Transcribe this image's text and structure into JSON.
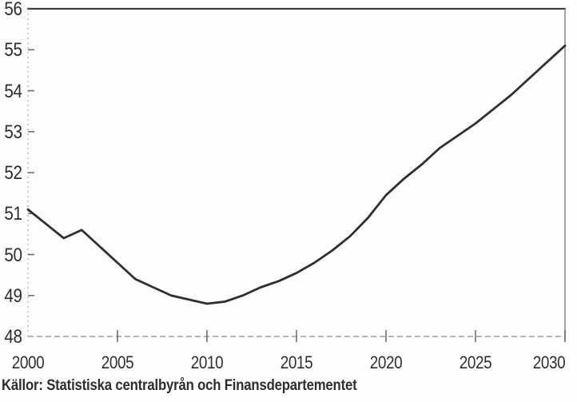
{
  "chart_data": {
    "type": "line",
    "x": [
      2000,
      2001,
      2002,
      2003,
      2004,
      2005,
      2006,
      2007,
      2008,
      2009,
      2010,
      2011,
      2012,
      2013,
      2014,
      2015,
      2016,
      2017,
      2018,
      2019,
      2020,
      2021,
      2022,
      2023,
      2024,
      2025,
      2026,
      2027,
      2028,
      2029,
      2030
    ],
    "values": [
      51.1,
      50.75,
      50.4,
      50.6,
      50.2,
      49.8,
      49.4,
      49.2,
      49.0,
      48.9,
      48.8,
      48.85,
      49.0,
      49.2,
      49.35,
      49.55,
      49.8,
      50.1,
      50.45,
      50.9,
      51.45,
      51.85,
      52.2,
      52.6,
      52.9,
      53.2,
      53.55,
      53.9,
      54.3,
      54.7,
      55.1
    ],
    "title": "",
    "xlabel": "",
    "ylabel": "",
    "xlim": [
      2000,
      2030
    ],
    "ylim": [
      48,
      56
    ],
    "x_ticks": [
      2000,
      2005,
      2010,
      2015,
      2020,
      2025,
      2030
    ],
    "y_ticks": [
      56,
      55,
      54,
      53,
      52,
      51,
      50,
      49,
      48
    ],
    "grid": false,
    "legend": false
  },
  "source_note": "Källor: Statistiska centralbyrån och Finansdepartementet",
  "colors": {
    "line": "#2f2f2f",
    "frame_top": "#3f3f3f",
    "frame_right": "#8c8c8c",
    "frame_bottom": "#9b9b9b",
    "frame_left": "#b5b5b5",
    "tick": "#6f6f6f",
    "text": "#2d2d2d",
    "background": "#fdfdfb"
  }
}
